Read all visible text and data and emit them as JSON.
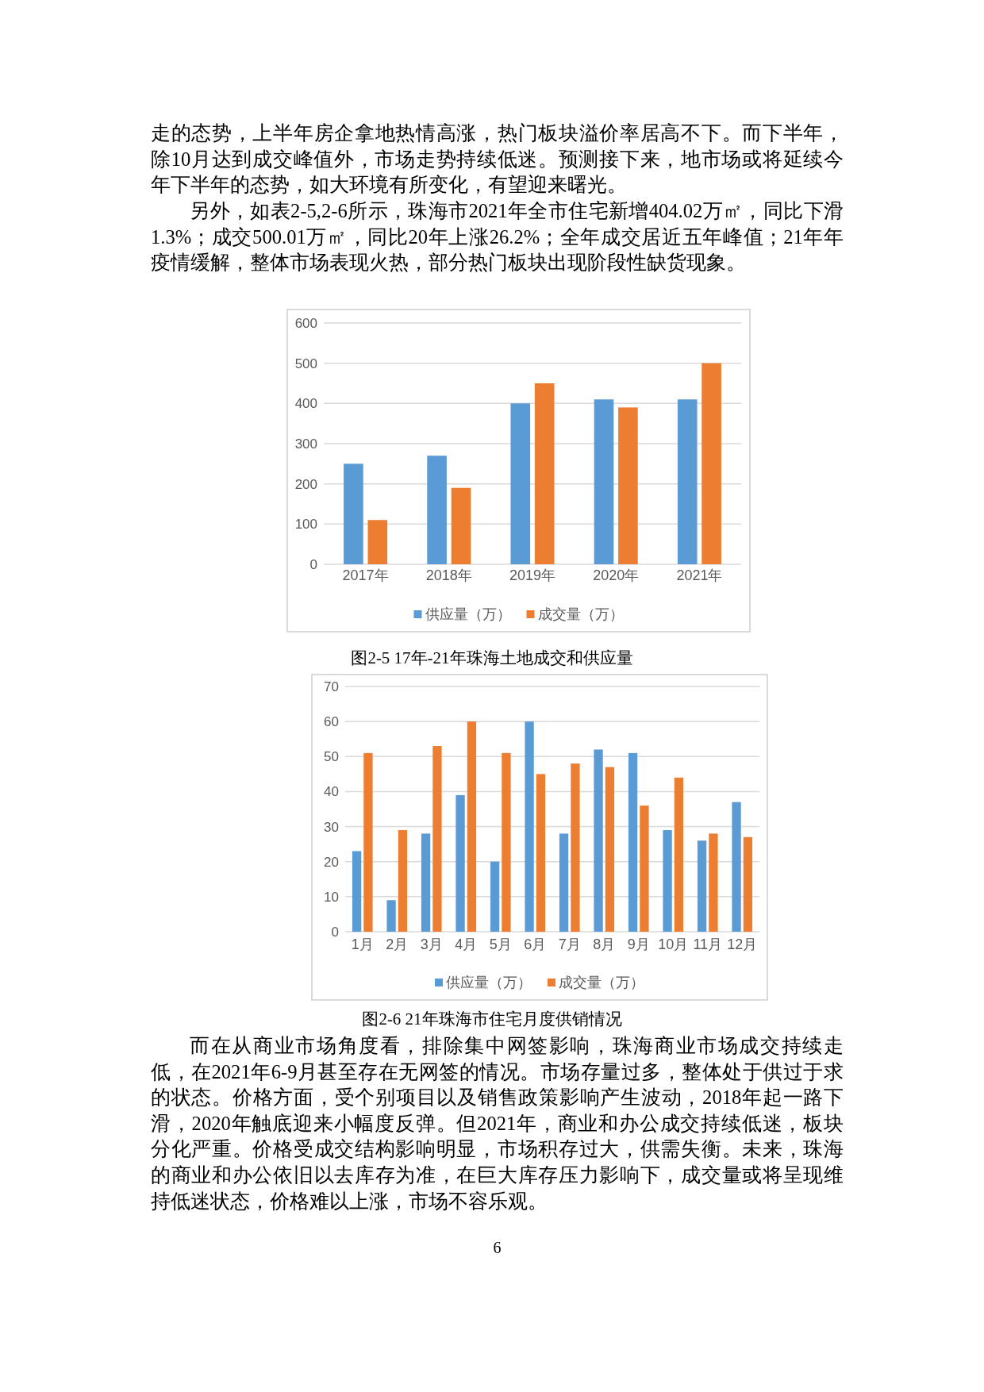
{
  "chart_data": [
    {
      "type": "bar",
      "title": "图2-5 17年-21年珠海土地成交和供应量",
      "annotations": [
        "走的态势，上半年房企拿地热情高涨，热门板块溢价率居高不下。而下半年，除10月达到成交峰值外，市场走势持续低迷。预测接下来，地市场或将延续今年下半年的态势，如大环境有所变化，有望迎来曙光。",
        "另外，如表2-5,2-6所示，珠海市2021年全市住宅新增404.02万㎡，同比下滑1.3%；成交500.01万㎡，同比20年上涨26.2%；全年成交居近五年峰值；21年年疫情缓解，整体市场表现火热，部分热门板块出现阶段性缺货现象。"
      ],
      "categories": [
        "2017年",
        "2018年",
        "2019年",
        "2020年",
        "2021年"
      ],
      "series": [
        {
          "name": "供应量（万）",
          "color": "#5b9bd5",
          "values": [
            250,
            270,
            400,
            410,
            410
          ]
        },
        {
          "name": "成交量（万）",
          "color": "#ed7d31",
          "values": [
            110,
            190,
            450,
            390,
            500
          ]
        }
      ],
      "ylim": [
        0,
        600
      ],
      "yticks": [
        0,
        100,
        200,
        300,
        400,
        500,
        600
      ],
      "grid": "y",
      "legend": "bottom"
    },
    {
      "type": "bar",
      "title": "图2-6 21年珠海市住宅月度供销情况",
      "annotations": [
        "而在从商业市场角度看，排除集中网签影响，珠海商业市场成交持续走低，在2021年6-9月甚至存在无网签的情况。市场存量过多，整体处于供过于求的状态。价格方面，受个别项目以及销售政策影响产生波动，2018年起一路下滑，2020年触底迎来小幅度反弹。但2021年，商业和办公成交持续低迷，板块分化严重。价格受成交结构影响明显，市场积存过大，供需失衡。未来，珠海的商业和办公依旧以去库存为准，在巨大库存压力影响下，成交量或将呈现维持低迷状态，价格难以上涨，市场不容乐观。",
        "6"
      ],
      "categories": [
        "1月",
        "2月",
        "3月",
        "4月",
        "5月",
        "6月",
        "7月",
        "8月",
        "9月",
        "10月",
        "11月",
        "12月"
      ],
      "series": [
        {
          "name": "供应量（万）",
          "color": "#5b9bd5",
          "values": [
            23,
            9,
            28,
            39,
            20,
            60,
            28,
            52,
            51,
            29,
            26,
            37
          ]
        },
        {
          "name": "成交量（万）",
          "color": "#ed7d31",
          "values": [
            51,
            29,
            53,
            60,
            51,
            45,
            48,
            47,
            36,
            44,
            28,
            27
          ]
        }
      ],
      "ylim": [
        0,
        70
      ],
      "yticks": [
        0,
        10,
        20,
        30,
        40,
        50,
        60,
        70
      ],
      "grid": "y",
      "legend": "bottom"
    }
  ]
}
